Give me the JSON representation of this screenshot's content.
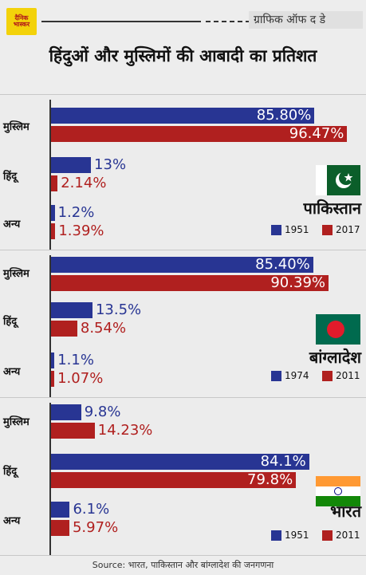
{
  "header": {
    "logo_text": "दैनिक भास्कर",
    "tag": "ग्राफिक ऑफ द डे",
    "title": "हिंदुओं और मुस्लिमों की आबादी का प्रतिशत"
  },
  "colors": {
    "first_year": "#283593",
    "second_year": "#b0201f"
  },
  "chart_data": [
    {
      "type": "bar",
      "country": "पाकिस्तान",
      "flag": "pakistan-flag",
      "categories": [
        "मुस्लिम",
        "हिंदू",
        "अन्य"
      ],
      "series": [
        {
          "name": "1951",
          "values": [
            85.8,
            13,
            1.2
          ],
          "labels": [
            "85.80%",
            "13%",
            "1.2%"
          ]
        },
        {
          "name": "2017",
          "values": [
            96.47,
            2.14,
            1.39
          ],
          "labels": [
            "96.47%",
            "2.14%",
            "1.39%"
          ]
        }
      ]
    },
    {
      "type": "bar",
      "country": "बांग्लादेश",
      "flag": "bangladesh-flag",
      "categories": [
        "मुस्लिम",
        "हिंदू",
        "अन्य"
      ],
      "series": [
        {
          "name": "1974",
          "values": [
            85.4,
            13.5,
            1.1
          ],
          "labels": [
            "85.40%",
            "13.5%",
            "1.1%"
          ]
        },
        {
          "name": "2011",
          "values": [
            90.39,
            8.54,
            1.07
          ],
          "labels": [
            "90.39%",
            "8.54%",
            "1.07%"
          ]
        }
      ]
    },
    {
      "type": "bar",
      "country": "भारत",
      "flag": "india-flag",
      "categories": [
        "मुस्लिम",
        "हिंदू",
        "अन्य"
      ],
      "series": [
        {
          "name": "1951",
          "values": [
            9.8,
            84.1,
            6.1
          ],
          "labels": [
            "9.8%",
            "84.1%",
            "6.1%"
          ]
        },
        {
          "name": "2011",
          "values": [
            14.23,
            79.8,
            5.97
          ],
          "labels": [
            "14.23%",
            "79.8%",
            "5.97%"
          ]
        }
      ]
    }
  ],
  "footer": {
    "source": "Source: भारत, पाकिस्तान और बांग्लादेश की जनगणना"
  }
}
